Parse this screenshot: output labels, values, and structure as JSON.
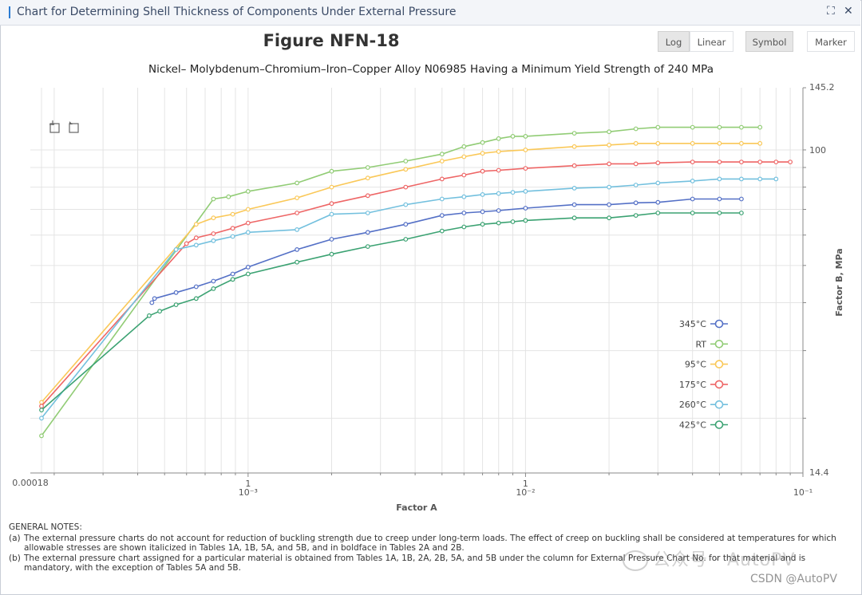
{
  "window": {
    "title": "Chart for Determining Shell Thickness of Components Under External Pressure",
    "expand_icon": "expand-icon",
    "close_icon": "close-icon"
  },
  "toolbar": {
    "log_label": "Log",
    "linear_label": "Linear",
    "symbol_label": "Symbol",
    "marker_label": "Marker"
  },
  "toolbox": {
    "zoom_icon": "zoom-icon",
    "zoom_reset_icon": "zoom-reset-icon"
  },
  "colors": {
    "345C": "#5470c6",
    "RT": "#91cc75",
    "95C": "#fac858",
    "175C": "#ee6666",
    "260C": "#73c0de",
    "425C": "#3ba272"
  },
  "notes": {
    "header": "GENERAL NOTES:",
    "a_mark": "(a)",
    "a_text": "The external pressure charts do not account for reduction of buckling strength due to creep under long-term loads. The effect of creep on buckling shall be considered at temperatures for which allowable stresses are shown italicized in Tables 1A, 1B, 5A, and 5B, and in boldface in Tables 2A and 2B.",
    "b_mark": "(b)",
    "b_text": "The external pressure chart assigned for a particular material is obtained from Tables 1A, 1B, 2A, 2B, 5A, and 5B under the column for External Pressure Chart No. for that material and is mandatory, with the exception of Tables 5A and 5B."
  },
  "watermark": {
    "text": "公众号 · AutoPV",
    "csdn": "CSDN @AutoPV"
  },
  "chart_data": {
    "type": "line",
    "title": "Figure NFN-18",
    "subtitle": "Nickel– Molybdenum–Chromium–Iron–Copper Alloy N06985 Having a Minimum Yield Strength of 240 MPa",
    "xlabel": "Factor A",
    "ylabel": "Factor B, MPa",
    "xscale": "log",
    "yscale": "log",
    "xlim": [
      0.00018,
      0.1
    ],
    "ylim": [
      14.4,
      145.2
    ],
    "xaxis_edge_labels": {
      "min": "0.00018",
      "max": "10⁻¹"
    },
    "yaxis_edge_labels": {
      "min": "14.4",
      "max": "145.2"
    },
    "xticks": [
      {
        "value": 0.001,
        "top": "1",
        "bottom": "10⁻³"
      },
      {
        "value": 0.01,
        "top": "1",
        "bottom": "10⁻²"
      }
    ],
    "yticks": [
      {
        "value": 100,
        "label": "100"
      }
    ],
    "y_axis_position": "right",
    "grid": true,
    "legend_position": "right",
    "series": [
      {
        "name": "345°C",
        "color_key": "345C",
        "x": [
          0.00045,
          0.00046,
          0.00055,
          0.00065,
          0.00075,
          0.00088,
          0.001,
          0.0015,
          0.002,
          0.0027,
          0.0037,
          0.005,
          0.006,
          0.007,
          0.008,
          0.01,
          0.015,
          0.02,
          0.025,
          0.03,
          0.04,
          0.05,
          0.06
        ],
        "y": [
          40,
          41,
          42.5,
          44,
          45.5,
          47.5,
          49.5,
          55,
          58.5,
          61,
          64,
          67.5,
          68.5,
          69,
          69.5,
          70.5,
          72,
          72,
          72.8,
          73,
          74.5,
          74.5,
          74.5
        ]
      },
      {
        "name": "RT",
        "color_key": "RT",
        "x": [
          0.00018,
          0.00075,
          0.00085,
          0.001,
          0.0015,
          0.002,
          0.0027,
          0.0037,
          0.005,
          0.006,
          0.007,
          0.008,
          0.009,
          0.01,
          0.015,
          0.02,
          0.025,
          0.03,
          0.04,
          0.05,
          0.06,
          0.07
        ],
        "y": [
          18,
          74.5,
          75.5,
          78,
          82,
          88,
          90,
          93.5,
          97.5,
          102,
          104.5,
          107,
          108.5,
          108.5,
          110.5,
          111.5,
          113.5,
          114.5,
          114.5,
          114.5,
          114.5,
          114.5
        ]
      },
      {
        "name": "95°C",
        "color_key": "95C",
        "x": [
          0.00018,
          0.00065,
          0.00075,
          0.00088,
          0.001,
          0.0015,
          0.002,
          0.0027,
          0.0037,
          0.005,
          0.006,
          0.007,
          0.008,
          0.01,
          0.015,
          0.02,
          0.025,
          0.03,
          0.04,
          0.05,
          0.06,
          0.07
        ],
        "y": [
          22,
          64,
          66.5,
          68,
          70,
          75,
          80,
          84.5,
          89,
          93.5,
          96,
          98,
          99,
          100,
          102,
          103,
          104,
          104,
          104,
          104,
          104,
          104
        ]
      },
      {
        "name": "175°C",
        "color_key": "175C",
        "x": [
          0.00018,
          0.0006,
          0.00065,
          0.00075,
          0.00088,
          0.001,
          0.0015,
          0.002,
          0.0027,
          0.0037,
          0.005,
          0.006,
          0.007,
          0.008,
          0.01,
          0.015,
          0.02,
          0.025,
          0.03,
          0.04,
          0.05,
          0.06,
          0.07,
          0.08,
          0.09
        ],
        "y": [
          21.5,
          57,
          59,
          60.5,
          62.5,
          64.5,
          68.5,
          72.5,
          76,
          80,
          84,
          86,
          88,
          88.5,
          89.5,
          91,
          92,
          92,
          92.5,
          93,
          93,
          93,
          93,
          93,
          93
        ]
      },
      {
        "name": "260°C",
        "color_key": "260C",
        "x": [
          0.00018,
          0.00055,
          0.00065,
          0.00075,
          0.00088,
          0.001,
          0.0015,
          0.002,
          0.0027,
          0.0037,
          0.005,
          0.006,
          0.007,
          0.008,
          0.009,
          0.01,
          0.015,
          0.02,
          0.025,
          0.03,
          0.04,
          0.05,
          0.06,
          0.07,
          0.08
        ],
        "y": [
          20,
          55,
          56.5,
          58,
          59.5,
          61,
          62,
          68,
          68.5,
          72,
          74.5,
          75.5,
          76.5,
          77,
          77.5,
          78,
          79.5,
          80,
          81,
          82,
          83,
          84,
          84,
          84,
          84
        ]
      },
      {
        "name": "425°C",
        "color_key": "425C",
        "x": [
          0.00018,
          0.00044,
          0.00048,
          0.00055,
          0.00065,
          0.00075,
          0.00088,
          0.001,
          0.0015,
          0.002,
          0.0027,
          0.0037,
          0.005,
          0.006,
          0.007,
          0.008,
          0.009,
          0.01,
          0.015,
          0.02,
          0.025,
          0.03,
          0.04,
          0.05,
          0.06
        ],
        "y": [
          21,
          37,
          38,
          39.5,
          41,
          43.5,
          46,
          47.5,
          51,
          53.5,
          56,
          58.5,
          61.5,
          63,
          64,
          64.5,
          65,
          65.5,
          66.5,
          66.5,
          67.5,
          68.5,
          68.5,
          68.5,
          68.5
        ]
      }
    ]
  }
}
